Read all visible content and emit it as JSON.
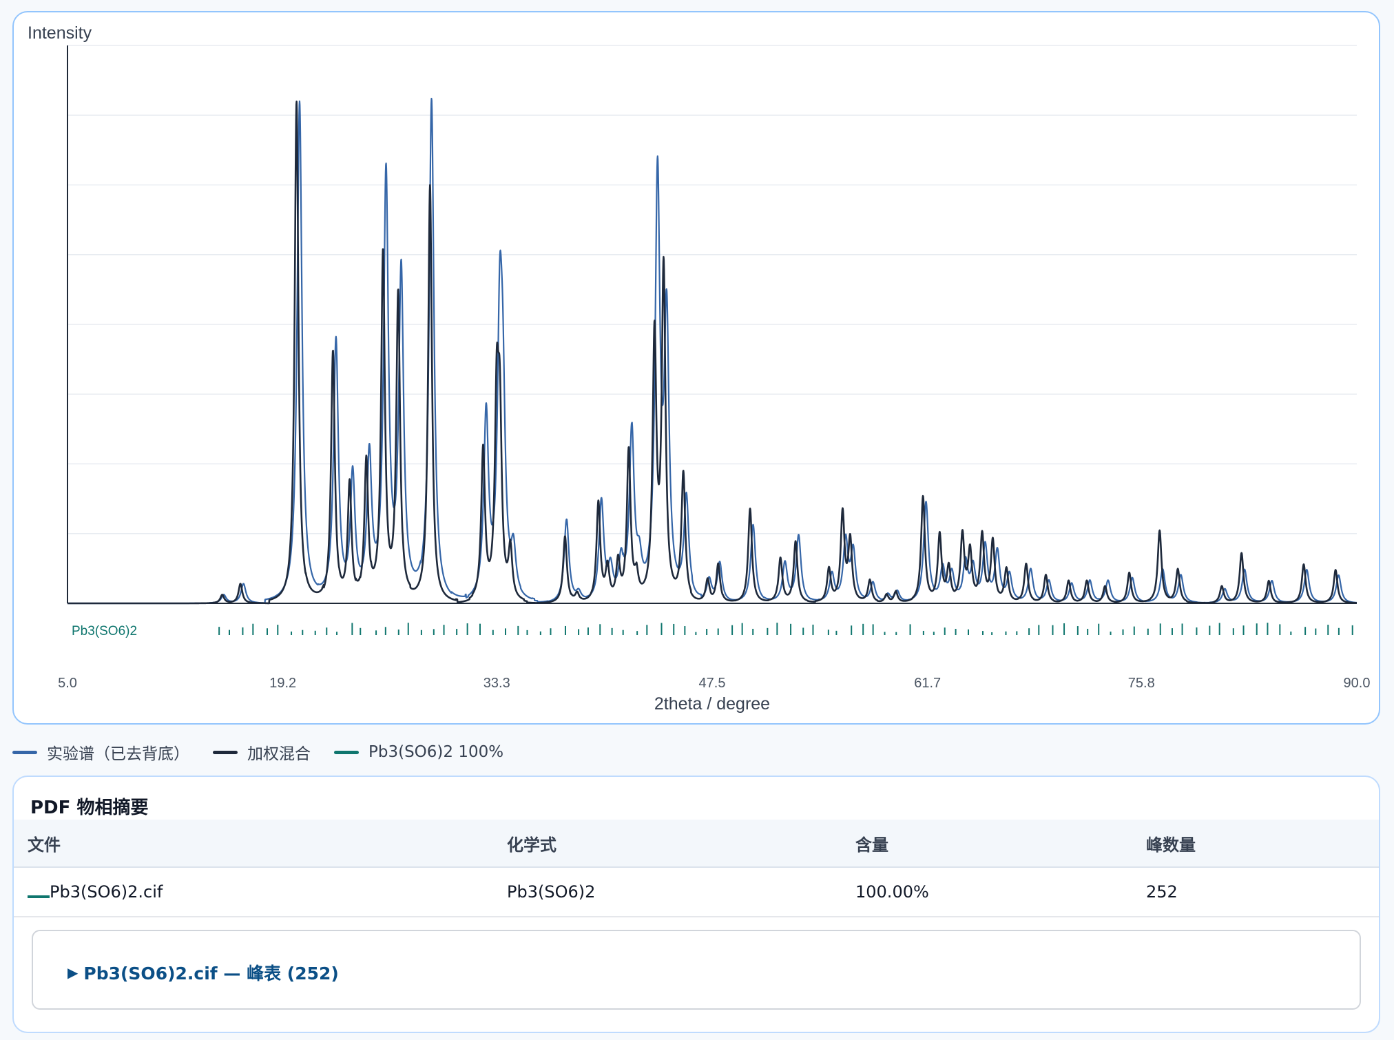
{
  "legend": {
    "items": [
      {
        "label": "实验谱（已去背底）",
        "color": "#3566a8"
      },
      {
        "label": "加权混合",
        "color": "#1e293b"
      },
      {
        "label": "Pb3(SO6)2 100%",
        "color": "#0f766e"
      }
    ]
  },
  "summary": {
    "title": "PDF 物相摘要",
    "columns": [
      "文件",
      "化学式",
      "含量",
      "峰数量"
    ],
    "rows": [
      {
        "file": "Pb3(SO6)2.cif",
        "formula": "Pb3(SO6)2",
        "content": "100.00%",
        "peaks": "252"
      }
    ],
    "peak_table_toggle": "Pb3(SO6)2.cif — 峰表 (252)"
  },
  "chart_data": {
    "type": "line",
    "title": "",
    "xlabel": "2theta / degree",
    "ylabel": "Intensity",
    "xlim": [
      5.0,
      90.0
    ],
    "ylim": [
      0,
      1.0
    ],
    "x_ticks": [
      "5.0",
      "19.2",
      "33.3",
      "47.5",
      "61.7",
      "75.8",
      "90.0"
    ],
    "y_gridlines": 8,
    "grid": true,
    "legend_position": "bottom-left",
    "series": [
      {
        "name": "实验谱（已去背底）",
        "color": "#3566a8",
        "peaks": [
          [
            15.3,
            0.015
          ],
          [
            16.6,
            0.035
          ],
          [
            20.3,
            0.9
          ],
          [
            22.7,
            0.47
          ],
          [
            23.8,
            0.22
          ],
          [
            24.9,
            0.25
          ],
          [
            26.0,
            0.76
          ],
          [
            27.0,
            0.58
          ],
          [
            29.0,
            0.9
          ],
          [
            32.6,
            0.33
          ],
          [
            33.5,
            0.46
          ],
          [
            33.7,
            0.3
          ],
          [
            34.4,
            0.08
          ],
          [
            37.9,
            0.15
          ],
          [
            38.7,
            0.015
          ],
          [
            40.2,
            0.18
          ],
          [
            40.8,
            0.055
          ],
          [
            41.5,
            0.07
          ],
          [
            42.2,
            0.3
          ],
          [
            42.7,
            0.055
          ],
          [
            43.9,
            0.75
          ],
          [
            44.5,
            0.49
          ],
          [
            45.8,
            0.18
          ],
          [
            47.3,
            0.04
          ],
          [
            48.0,
            0.07
          ],
          [
            50.2,
            0.14
          ],
          [
            52.3,
            0.07
          ],
          [
            53.2,
            0.12
          ],
          [
            55.4,
            0.05
          ],
          [
            56.3,
            0.11
          ],
          [
            56.8,
            0.09
          ],
          [
            58.1,
            0.035
          ],
          [
            59.1,
            0.015
          ],
          [
            59.7,
            0.02
          ],
          [
            61.6,
            0.18
          ],
          [
            62.7,
            0.06
          ],
          [
            63.3,
            0.05
          ],
          [
            64.2,
            0.07
          ],
          [
            64.7,
            0.06
          ],
          [
            65.5,
            0.1
          ],
          [
            66.3,
            0.09
          ],
          [
            67.1,
            0.05
          ],
          [
            68.5,
            0.06
          ],
          [
            69.7,
            0.04
          ],
          [
            71.2,
            0.035
          ],
          [
            72.4,
            0.04
          ],
          [
            73.6,
            0.04
          ],
          [
            75.2,
            0.045
          ],
          [
            77.2,
            0.06
          ],
          [
            78.4,
            0.05
          ],
          [
            81.3,
            0.025
          ],
          [
            82.6,
            0.06
          ],
          [
            84.4,
            0.04
          ],
          [
            86.7,
            0.06
          ],
          [
            88.8,
            0.05
          ]
        ]
      },
      {
        "name": "加权混合",
        "color": "#1e293b",
        "peaks": [
          [
            15.2,
            0.015
          ],
          [
            16.4,
            0.035
          ],
          [
            20.1,
            0.9
          ],
          [
            22.5,
            0.45
          ],
          [
            23.6,
            0.21
          ],
          [
            24.7,
            0.25
          ],
          [
            25.8,
            0.62
          ],
          [
            26.8,
            0.55
          ],
          [
            28.9,
            0.75
          ],
          [
            32.4,
            0.27
          ],
          [
            33.3,
            0.34
          ],
          [
            33.5,
            0.3
          ],
          [
            34.2,
            0.09
          ],
          [
            37.8,
            0.12
          ],
          [
            38.6,
            0.015
          ],
          [
            40.0,
            0.18
          ],
          [
            40.6,
            0.06
          ],
          [
            41.3,
            0.07
          ],
          [
            42.0,
            0.27
          ],
          [
            42.5,
            0.04
          ],
          [
            43.7,
            0.47
          ],
          [
            44.3,
            0.59
          ],
          [
            45.6,
            0.23
          ],
          [
            47.2,
            0.04
          ],
          [
            47.9,
            0.07
          ],
          [
            50.0,
            0.17
          ],
          [
            52.0,
            0.08
          ],
          [
            53.0,
            0.11
          ],
          [
            55.2,
            0.06
          ],
          [
            56.1,
            0.16
          ],
          [
            56.6,
            0.11
          ],
          [
            57.9,
            0.04
          ],
          [
            59.0,
            0.015
          ],
          [
            59.6,
            0.02
          ],
          [
            61.4,
            0.19
          ],
          [
            62.5,
            0.12
          ],
          [
            63.1,
            0.06
          ],
          [
            64.0,
            0.12
          ],
          [
            64.5,
            0.09
          ],
          [
            65.3,
            0.12
          ],
          [
            66.0,
            0.11
          ],
          [
            66.9,
            0.06
          ],
          [
            68.2,
            0.07
          ],
          [
            69.5,
            0.05
          ],
          [
            71.0,
            0.04
          ],
          [
            72.2,
            0.04
          ],
          [
            73.4,
            0.03
          ],
          [
            75.0,
            0.055
          ],
          [
            77.0,
            0.13
          ],
          [
            78.2,
            0.06
          ],
          [
            81.1,
            0.03
          ],
          [
            82.4,
            0.09
          ],
          [
            84.2,
            0.04
          ],
          [
            86.5,
            0.07
          ],
          [
            88.6,
            0.06
          ]
        ]
      }
    ],
    "reference_phase": {
      "name": "Pb3(SO6)2",
      "color": "#0f766e",
      "count": 252
    }
  }
}
